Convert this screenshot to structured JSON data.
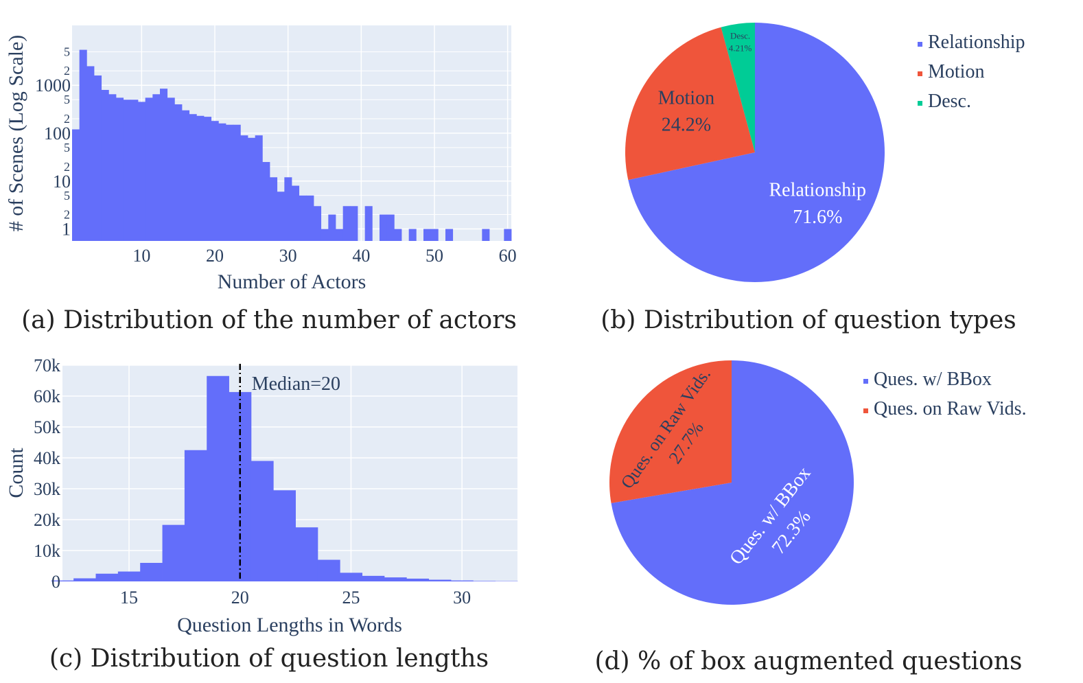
{
  "colors": {
    "plot_bg": "#e5ecf6",
    "grid": "#ffffff",
    "axis_text": "#2a3f5f",
    "blue": "#636efa",
    "red": "#ef553b",
    "green": "#00cc96",
    "caption": "#222222"
  },
  "chart_data": [
    {
      "type": "bar",
      "title": "",
      "caption": "(a) Distribution of the number of actors",
      "xlabel": "Number of Actors",
      "ylabel": "# of Scenes (Log Scale)",
      "yscale": "log",
      "xlim": [
        0.5,
        60.5
      ],
      "ylim_log10": [
        -0.25,
        4.25
      ],
      "x_ticks": [
        10,
        20,
        30,
        40,
        50,
        60
      ],
      "x_tick_labels": [
        "10",
        "20",
        "30",
        "40",
        "50",
        "60"
      ],
      "y_major_ticks": [
        1,
        10,
        100,
        1000
      ],
      "y_major_labels": [
        "1",
        "10",
        "100",
        "1000"
      ],
      "y_minor_ticks": [
        2,
        5,
        20,
        50,
        200,
        500,
        2000,
        5000
      ],
      "y_minor_labels": [
        "2",
        "5",
        "2",
        "5",
        "2",
        "5",
        "2",
        "5"
      ],
      "bin_width": 1,
      "bins_x": [
        1,
        2,
        3,
        4,
        5,
        6,
        7,
        8,
        9,
        10,
        11,
        12,
        13,
        14,
        15,
        16,
        17,
        18,
        19,
        20,
        21,
        22,
        23,
        24,
        25,
        26,
        27,
        28,
        29,
        30,
        31,
        32,
        33,
        34,
        35,
        36,
        37,
        38,
        39,
        40,
        41,
        42,
        43,
        44,
        45,
        46,
        47,
        48,
        49,
        50,
        51,
        52,
        53,
        54,
        55,
        56,
        57,
        58,
        59,
        60
      ],
      "values": [
        120,
        5500,
        2500,
        1600,
        800,
        650,
        550,
        500,
        500,
        450,
        550,
        650,
        850,
        550,
        400,
        300,
        250,
        230,
        220,
        180,
        160,
        150,
        150,
        90,
        80,
        90,
        25,
        12,
        6,
        12,
        8,
        5,
        5,
        3,
        1,
        2,
        1,
        3,
        3,
        0,
        3,
        0,
        2,
        2,
        1,
        0,
        1,
        0,
        1,
        1,
        0,
        1,
        0,
        0,
        0,
        0,
        1,
        0,
        0,
        1
      ]
    },
    {
      "type": "pie",
      "caption": "(b) Distribution of question types",
      "labels": [
        "Relationship",
        "Motion",
        "Desc."
      ],
      "values": [
        71.6,
        24.2,
        4.21
      ],
      "slice_texts": [
        [
          "Relationship",
          "71.6%"
        ],
        [
          "Motion",
          "24.2%"
        ],
        [
          "Desc.",
          "4.21%"
        ]
      ],
      "colors": [
        "#636efa",
        "#ef553b",
        "#00cc96"
      ],
      "direction": "clockwise",
      "legend": [
        "Relationship",
        "Motion",
        "Desc."
      ],
      "legend_position": "top-right"
    },
    {
      "type": "bar",
      "title": "",
      "caption": "(c) Distribution of question lengths",
      "xlabel": "Question Lengths in Words",
      "ylabel": "Count",
      "xlim": [
        12,
        32.5
      ],
      "ylim": [
        0,
        70000
      ],
      "x_ticks": [
        15,
        20,
        25,
        30
      ],
      "x_tick_labels": [
        "15",
        "20",
        "25",
        "30"
      ],
      "y_ticks": [
        0,
        10000,
        20000,
        30000,
        40000,
        50000,
        60000,
        70000
      ],
      "y_tick_labels": [
        "0",
        "10k",
        "20k",
        "30k",
        "40k",
        "50k",
        "60k",
        "70k"
      ],
      "bin_width": 1,
      "bins_x": [
        12,
        13,
        14,
        15,
        16,
        17,
        18,
        19,
        20,
        21,
        22,
        23,
        24,
        25,
        26,
        27,
        28,
        29,
        30,
        31,
        32
      ],
      "values": [
        300,
        1000,
        2500,
        3200,
        6000,
        18300,
        42500,
        66500,
        61300,
        39000,
        29500,
        17500,
        7000,
        2800,
        1800,
        1300,
        900,
        550,
        300,
        150,
        100
      ],
      "median_line": 20,
      "median_label": "Median=20"
    },
    {
      "type": "pie",
      "caption": "(d) % of box augmented questions",
      "labels": [
        "Ques. w/ BBox",
        "Ques. on Raw Vids."
      ],
      "values": [
        72.3,
        27.7
      ],
      "slice_texts": [
        [
          "Ques. w/ BBox",
          "72.3%"
        ],
        [
          "Ques. on Raw Vids.",
          "27.7%"
        ]
      ],
      "colors": [
        "#636efa",
        "#ef553b"
      ],
      "direction": "clockwise",
      "legend": [
        "Ques. w/ BBox",
        "Ques. on Raw Vids."
      ],
      "legend_position": "top-right"
    }
  ]
}
